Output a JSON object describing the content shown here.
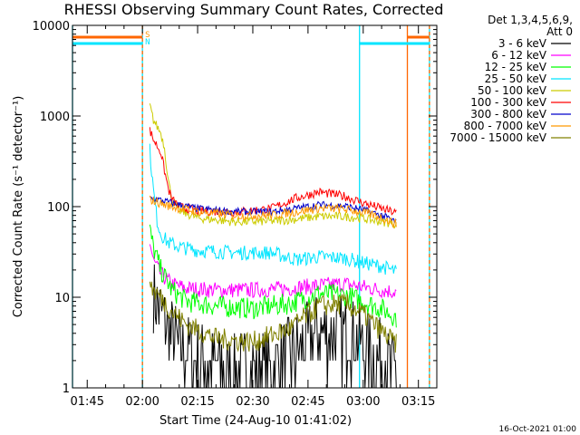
{
  "chart_data": {
    "type": "line",
    "title": "RHESSI Observing Summary Count Rates, Corrected",
    "xlabel": "Start Time (24-Aug-10 01:41:02)",
    "ylabel": "Corrected Count Rate (s⁻¹ detector⁻¹)",
    "yscale": "log",
    "ylim": [
      1,
      10000
    ],
    "xlim": [
      "01:41",
      "03:20"
    ],
    "x_ticks": [
      "01:45",
      "02:00",
      "02:15",
      "02:30",
      "02:45",
      "03:00",
      "03:15"
    ],
    "y_ticks": [
      "1",
      "10",
      "100",
      "1000",
      "10000"
    ],
    "legend_header": [
      "Det 1,3,4,5,6,9,",
      "Att 0"
    ],
    "legend_position": "right",
    "footer_text": "16-Oct-2021 01:00",
    "flag_labels": [
      {
        "text": "S",
        "color": "#ff9900"
      },
      {
        "text": "N",
        "color": "#00e5ff"
      }
    ],
    "markers": [
      {
        "name": "night",
        "color": "#00e5ff",
        "times": [
          "01:41",
          "02:00",
          "02:59",
          "03:18"
        ]
      },
      {
        "name": "saa",
        "color": "#ff6600",
        "times": [
          "02:00",
          "03:12",
          "03:18"
        ]
      }
    ],
    "series": [
      {
        "name": "3 - 6 keV",
        "color": "#000000",
        "times": [
          "02:03",
          "02:05",
          "02:07",
          "02:10",
          "02:15",
          "02:25",
          "02:35",
          "02:40",
          "02:48",
          "02:55",
          "03:00",
          "03:05",
          "03:09"
        ],
        "values": [
          10,
          7,
          4,
          2.8,
          2,
          1.5,
          1.6,
          2.2,
          4,
          4,
          3,
          2,
          1.5
        ]
      },
      {
        "name": "6 - 12 keV",
        "color": "#ff00ff",
        "times": [
          "02:02",
          "02:03",
          "02:05",
          "02:08",
          "02:12",
          "02:20",
          "02:30",
          "02:40",
          "02:48",
          "02:55",
          "03:00",
          "03:05",
          "03:09"
        ],
        "values": [
          40,
          25,
          18,
          14,
          12.5,
          12,
          12,
          12.5,
          13.5,
          14,
          13,
          12,
          11.5
        ]
      },
      {
        "name": "12 - 25 keV",
        "color": "#00ff00",
        "times": [
          "02:02",
          "02:03",
          "02:05",
          "02:08",
          "02:12",
          "02:20",
          "02:30",
          "02:40",
          "02:48",
          "02:55",
          "03:00",
          "03:05",
          "03:09"
        ],
        "values": [
          55,
          35,
          20,
          12,
          9,
          8,
          7.5,
          8.5,
          11,
          10.5,
          9,
          7.5,
          6
        ]
      },
      {
        "name": "25 - 50 keV",
        "color": "#00e5ff",
        "times": [
          "02:02",
          "02:03",
          "02:04",
          "02:05",
          "02:07",
          "02:10",
          "02:15",
          "02:25",
          "02:35",
          "02:42",
          "02:48",
          "02:55",
          "03:00",
          "03:05",
          "03:09"
        ],
        "values": [
          420,
          150,
          70,
          50,
          40,
          36,
          33,
          31,
          31,
          26,
          28,
          27,
          24,
          22,
          19
        ]
      },
      {
        "name": "50 - 100 keV",
        "color": "#cccc00",
        "times": [
          "02:02",
          "02:03",
          "02:05",
          "02:06",
          "02:07",
          "02:08",
          "02:10",
          "02:15",
          "02:25",
          "02:35",
          "02:42",
          "02:48",
          "02:55",
          "03:00",
          "03:05",
          "03:09"
        ],
        "values": [
          1300,
          900,
          650,
          450,
          200,
          120,
          90,
          75,
          68,
          69,
          73,
          78,
          78,
          74,
          68,
          65
        ]
      },
      {
        "name": "100 - 300 keV",
        "color": "#ff0000",
        "times": [
          "02:02",
          "02:03",
          "02:05",
          "02:06",
          "02:07",
          "02:08",
          "02:10",
          "02:15",
          "02:25",
          "02:35",
          "02:42",
          "02:48",
          "02:55",
          "03:00",
          "03:05",
          "03:09"
        ],
        "values": [
          700,
          550,
          400,
          250,
          160,
          120,
          100,
          90,
          87,
          95,
          125,
          145,
          130,
          110,
          95,
          85
        ]
      },
      {
        "name": "300 - 800 keV",
        "color": "#0000cc",
        "times": [
          "02:02",
          "02:04",
          "02:06",
          "02:08",
          "02:10",
          "02:15",
          "02:25",
          "02:35",
          "02:42",
          "02:48",
          "02:55",
          "03:00",
          "03:05",
          "03:09"
        ],
        "values": [
          125,
          120,
          115,
          110,
          105,
          95,
          88,
          88,
          96,
          105,
          102,
          92,
          80,
          68
        ]
      },
      {
        "name": "800 - 7000 keV",
        "color": "#ff9900",
        "times": [
          "02:02",
          "02:04",
          "02:06",
          "02:08",
          "02:10",
          "02:15",
          "02:25",
          "02:35",
          "02:42",
          "02:48",
          "02:55",
          "03:00",
          "03:05",
          "03:09"
        ],
        "values": [
          120,
          112,
          105,
          100,
          96,
          88,
          80,
          80,
          88,
          96,
          94,
          86,
          76,
          64
        ]
      },
      {
        "name": "7000 - 15000 keV",
        "color": "#808000",
        "times": [
          "02:02",
          "02:03",
          "02:05",
          "02:08",
          "02:12",
          "02:20",
          "02:30",
          "02:40",
          "02:48",
          "02:55",
          "03:00",
          "03:05",
          "03:09"
        ],
        "values": [
          15,
          12,
          10,
          7,
          5,
          3.5,
          3.2,
          4.5,
          8,
          8.5,
          6.5,
          4.2,
          3
        ]
      }
    ]
  }
}
